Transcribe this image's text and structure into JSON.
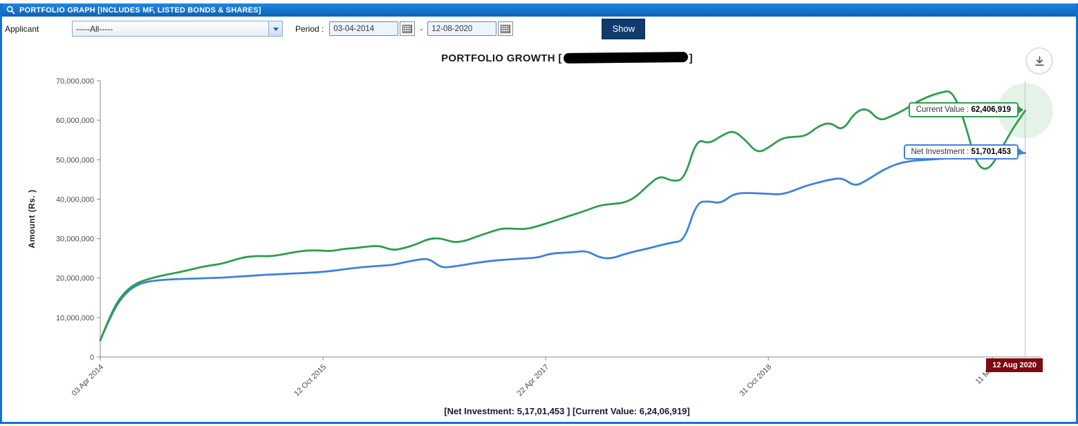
{
  "header": {
    "title": "PORTFOLIO GRAPH [INCLUDES MF, LISTED BONDS & SHARES]"
  },
  "controls": {
    "applicant_label": "Applicant",
    "applicant_value": "-----All-----",
    "period_label": "Period :",
    "date_from": "03-04-2014",
    "date_separator": "-",
    "date_to": "12-08-2020",
    "show_label": "Show"
  },
  "icons": {
    "header_search": "magnifier",
    "dropdown_arrow": "chevron-down",
    "calendar": "calendar-grid",
    "download": "download-arrow"
  },
  "colors": {
    "header_blue": "#1272cf",
    "show_button_navy": "#113a6d",
    "current_value_green": "#2d9e49",
    "net_investment_blue": "#3b82dd",
    "crosshair_badge_maroon": "#7d0a10"
  },
  "chart": {
    "title_prefix": "PORTFOLIO GROWTH [",
    "title_suffix": "]",
    "title_redacted": true,
    "y_axis_label": "Amount (Rs. )",
    "tooltip_current": {
      "label": "Current Value :",
      "value": "62,406,919"
    },
    "tooltip_net": {
      "label": "Net Investment :",
      "value": "51,701,453"
    },
    "crosshair_date": "12 Aug 2020",
    "summary": "[Net Investment: 5,17,01,453 ] [Current Value: 6,24,06,919]"
  },
  "chart_data": {
    "type": "line",
    "title": "PORTFOLIO GROWTH [name redacted]",
    "xlabel": "",
    "ylabel": "Amount (Rs. )",
    "ylim_rs": [
      0,
      70000000
    ],
    "grid": false,
    "legend_position": "end-of-line callouts",
    "y_tick_values_millions": [
      0,
      10,
      20,
      30,
      40,
      50,
      60,
      70
    ],
    "y_tick_labels": [
      "0",
      "10,000,000",
      "20,000,000",
      "30,000,000",
      "40,000,000",
      "50,000,000",
      "60,000,000",
      "70,000,000"
    ],
    "x_unit": "months since 03 Apr 2014 (series sampled monthly, index = month)",
    "x_tick_months": [
      0,
      18.3,
      36.6,
      54.9,
      73.3
    ],
    "x_tick_labels": [
      "03 Apr 2014",
      "12 Oct 2015",
      "22 Apr 2017",
      "31 Oct 2018",
      "11 May"
    ],
    "hover_date": "12 Aug 2020",
    "values_unit": "millions of Rs (estimated from plot)",
    "series": [
      {
        "name": "Current Value",
        "color": "#2d9e49",
        "end_value_rs": "62,406,919",
        "values": [
          4.2,
          12,
          16.5,
          18.8,
          19.8,
          20.6,
          21.2,
          21.8,
          22.6,
          23.2,
          23.6,
          24.6,
          25.4,
          25.6,
          25.5,
          26,
          26.6,
          27,
          27,
          26.8,
          27.4,
          27.6,
          28,
          28.2,
          27,
          27.6,
          28.6,
          30,
          30.1,
          29,
          29.4,
          30.6,
          31.6,
          32.6,
          32.5,
          32.4,
          33.2,
          34.2,
          35.2,
          36.2,
          37.2,
          38.4,
          38.8,
          39,
          40.5,
          43.5,
          46,
          44.5,
          45,
          55.3,
          54,
          56,
          57.5,
          55,
          51.6,
          53.2,
          55.5,
          55.8,
          56,
          58.5,
          59.5,
          57.2,
          62,
          63.2,
          59.8,
          61,
          62.5,
          64.5,
          66,
          67,
          67.6,
          60,
          48.5,
          47.2,
          52.5,
          58,
          62.4
        ]
      },
      {
        "name": "Net Investment",
        "color": "#3b82dd",
        "end_value_rs": "51,701,453",
        "values": [
          4.2,
          11.5,
          16,
          18.3,
          19.2,
          19.5,
          19.7,
          19.8,
          19.9,
          20,
          20.1,
          20.3,
          20.5,
          20.7,
          20.9,
          21,
          21.2,
          21.3,
          21.5,
          21.8,
          22.2,
          22.6,
          22.9,
          23.1,
          23.3,
          24,
          24.6,
          25,
          22.6,
          22.9,
          23.4,
          23.9,
          24.3,
          24.6,
          24.8,
          25,
          25.2,
          26.2,
          26.4,
          26.6,
          26.9,
          25.2,
          24.9,
          26,
          26.8,
          27.5,
          28.3,
          29,
          29.5,
          39.2,
          39.5,
          38.9,
          41.3,
          41.6,
          41.5,
          41.3,
          41.2,
          42.2,
          43.4,
          44.2,
          45,
          45.4,
          43.2,
          44.8,
          46.8,
          48.4,
          49.4,
          49.8,
          50,
          50.2,
          50.4,
          50.5,
          50.7,
          50.9,
          51.1,
          51.4,
          51.7
        ]
      }
    ]
  }
}
